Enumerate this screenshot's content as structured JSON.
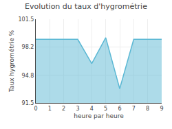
{
  "chart_data": {
    "type": "area",
    "title": "Evolution du taux d'hygrométrie",
    "xlabel": "heure par heure",
    "ylabel": "Taux hygrométrie %",
    "x": [
      0,
      1,
      2,
      3,
      4,
      5,
      6,
      7,
      8,
      9
    ],
    "values": [
      99.1,
      99.1,
      99.1,
      99.1,
      96.2,
      99.3,
      93.2,
      99.1,
      99.1,
      99.1
    ],
    "color": "#5bb8d4",
    "xlim": [
      0,
      9
    ],
    "ylim": [
      91.5,
      101.5
    ],
    "xticks": [
      0,
      1,
      2,
      3,
      4,
      5,
      6,
      7,
      8,
      9
    ],
    "yticks": [
      91.5,
      94.8,
      98.2,
      101.5
    ],
    "grid": true
  }
}
